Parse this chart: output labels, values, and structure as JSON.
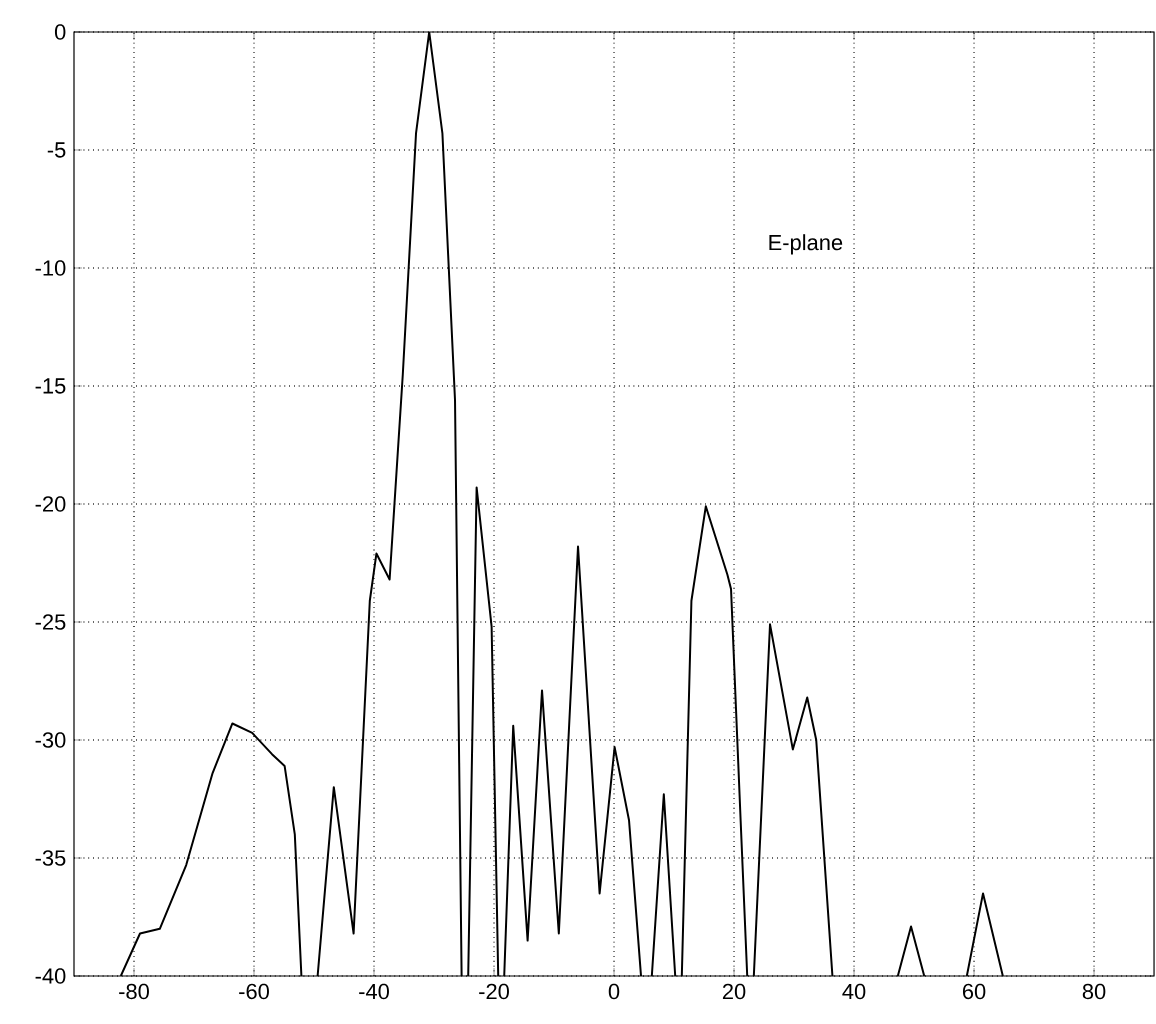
{
  "chart_data": {
    "type": "line",
    "x": [
      -82.2,
      -79,
      -75.7,
      -71.3,
      -66.9,
      -63.6,
      -60.3,
      -57,
      -54.9,
      -53.2,
      -52.1,
      null,
      -49.4,
      -46.7,
      -43.4,
      -40.7,
      -39.6,
      -37.4,
      -35.2,
      -33,
      -30.8,
      -28.6,
      -26.5,
      -25.4,
      null,
      -24.3,
      -22.9,
      -20.4,
      -19.3,
      null,
      -18.3,
      -16.8,
      -14.4,
      -12,
      -9.2,
      -6,
      -2.4,
      0.1,
      2.5,
      4.5,
      null,
      6.3,
      8.3,
      10.2,
      null,
      11.3,
      12.9,
      15.3,
      18.9,
      19.5,
      21.1,
      22.2,
      null,
      23.3,
      26,
      29.8,
      32.2,
      33.7,
      36.4,
      null,
      47.3,
      49.5,
      51.7,
      null,
      58.8,
      61.5,
      64.8
    ],
    "series": [
      {
        "color": "#000000",
        "values": [
          -40,
          -38.2,
          -38.0,
          -35.3,
          -31.4,
          -29.3,
          -29.7,
          -30.6,
          -31.1,
          -34.0,
          -40,
          null,
          -40,
          -32.0,
          -38.2,
          -24.1,
          -22.1,
          -23.2,
          -14.5,
          -4.3,
          0,
          -4.3,
          -15.6,
          -40,
          null,
          -40,
          -19.3,
          -25.2,
          -40,
          null,
          -40,
          -29.4,
          -38.5,
          -27.9,
          -38.2,
          -21.8,
          -36.5,
          -30.3,
          -33.4,
          -40,
          null,
          -40,
          -32.3,
          -40,
          null,
          -40,
          -24.1,
          -20.1,
          -23.0,
          -23.6,
          -33.4,
          -40,
          null,
          -40,
          -25.1,
          -30.4,
          -28.2,
          -30.0,
          -40,
          null,
          -40,
          -37.9,
          -40,
          null,
          -40,
          -36.5,
          -40
        ]
      }
    ],
    "xlim": [
      -90,
      90
    ],
    "xticks": [
      -80,
      -60,
      -40,
      -20,
      0,
      20,
      40,
      60,
      80
    ],
    "ylim": [
      -40,
      0
    ],
    "yticks": [
      -40,
      -35,
      -30,
      -25,
      -20,
      -15,
      -10,
      -5,
      0
    ],
    "grid": true,
    "line_style": "solid",
    "annotations": [
      "E-plane"
    ]
  }
}
